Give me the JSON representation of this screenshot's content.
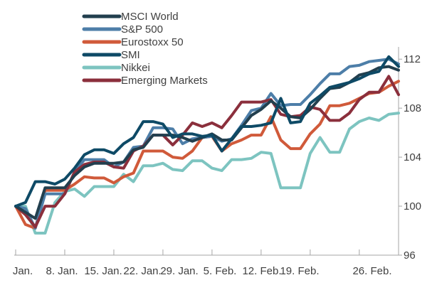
{
  "chart_data": {
    "type": "line",
    "title": "",
    "xlabel": "",
    "ylabel": "",
    "ylim": [
      96,
      113
    ],
    "xlim": [
      0,
      39
    ],
    "y_ticks": [
      96,
      100,
      104,
      108,
      112
    ],
    "x_tick_labels": [
      "Jan.",
      "8. Jan.",
      "15. Jan.",
      "22. Jan.",
      "29. Jan.",
      "5. Feb.",
      "12. Feb.",
      "19. Feb.",
      "26. Feb."
    ],
    "x_tick_positions": [
      0,
      5,
      10,
      15,
      20,
      25,
      30,
      35,
      39
    ],
    "legend_position": "top-left",
    "grid": false,
    "series": [
      {
        "name": "MSCI World",
        "color": "#223f4e",
        "values": [
          100,
          99.5,
          99,
          101.5,
          101.5,
          101.5,
          102.5,
          103.2,
          103.5,
          103.5,
          103.5,
          103.6,
          104.6,
          104.8,
          105.8,
          105.8,
          105.8,
          105.6,
          105.3,
          105.6,
          105.9,
          105.4,
          105.4,
          106.4,
          107.4,
          107.9,
          108.6,
          108.0,
          107.3,
          107.2,
          107.9,
          108.8,
          109.6,
          109.7,
          110.1,
          110.7,
          110.9,
          111.3,
          111.4,
          111.1
        ]
      },
      {
        "name": "S&P 500",
        "color": "#4d7ea8",
        "values": [
          100,
          99.8,
          98.2,
          101.0,
          101.0,
          101.0,
          102.8,
          103.8,
          103.8,
          103.8,
          103.2,
          103.6,
          104.8,
          104.9,
          106.4,
          106.4,
          106.3,
          105.1,
          105.5,
          105.6,
          105.7,
          105.3,
          105.5,
          106.6,
          107.8,
          108.0,
          109.2,
          108.2,
          108.3,
          108.3,
          109.1,
          110.0,
          110.8,
          110.8,
          111.4,
          111.5,
          111.8,
          111.9,
          112.0,
          111.6
        ]
      },
      {
        "name": "Eurostoxx 50",
        "color": "#d05a3a",
        "values": [
          100,
          98.5,
          98.2,
          101.3,
          101.3,
          101.3,
          101.8,
          102.4,
          102.3,
          102.3,
          101.9,
          102.4,
          102.7,
          104.5,
          104.5,
          104.5,
          104.0,
          103.9,
          104.5,
          105.6,
          105.7,
          104.5,
          105.1,
          105.4,
          105.8,
          105.8,
          107.3,
          105.4,
          104.7,
          104.7,
          105.9,
          106.7,
          108.2,
          108.2,
          108.4,
          108.8,
          109.2,
          109.3,
          109.8,
          110.2
        ]
      },
      {
        "name": "SMI",
        "color": "#0e4a66",
        "values": [
          100,
          100.3,
          102.0,
          102.0,
          101.8,
          102.2,
          103.1,
          104.2,
          104.6,
          104.6,
          104.3,
          105.1,
          105.6,
          106.9,
          106.9,
          106.7,
          105.6,
          105.9,
          105.9,
          105.7,
          105.8,
          104.5,
          105.5,
          106.5,
          106.5,
          106.6,
          106.8,
          108.8,
          106.8,
          106.9,
          108.4,
          109.0,
          109.7,
          109.9,
          110.1,
          110.4,
          110.8,
          111.0,
          112.2,
          111.4
        ]
      },
      {
        "name": "Nikkei",
        "color": "#7dc4c0",
        "values": [
          100,
          100.0,
          97.8,
          97.8,
          100.3,
          101.2,
          101.4,
          100.8,
          101.6,
          101.6,
          101.6,
          102.6,
          102.0,
          103.3,
          103.3,
          103.5,
          103.0,
          102.9,
          103.7,
          103.7,
          103.1,
          102.9,
          103.8,
          103.8,
          103.9,
          104.4,
          104.3,
          101.5,
          101.5,
          101.5,
          104.3,
          105.6,
          104.4,
          104.4,
          106.3,
          106.9,
          107.2,
          107.0,
          107.5,
          107.6
        ]
      },
      {
        "name": "Emerging Markets",
        "color": "#8b2f3c",
        "values": [
          100,
          99.3,
          98.3,
          100.0,
          100.0,
          101.0,
          102.8,
          103.4,
          103.6,
          103.6,
          103.2,
          103.1,
          104.5,
          104.9,
          105.8,
          105.8,
          105.0,
          105.8,
          106.8,
          106.5,
          106.8,
          106.4,
          107.4,
          108.5,
          108.5,
          108.5,
          108.7,
          107.5,
          107.3,
          107.4,
          108.1,
          107.9,
          107.0,
          107.0,
          107.6,
          108.7,
          109.3,
          109.3,
          110.6,
          109.1
        ]
      }
    ]
  }
}
